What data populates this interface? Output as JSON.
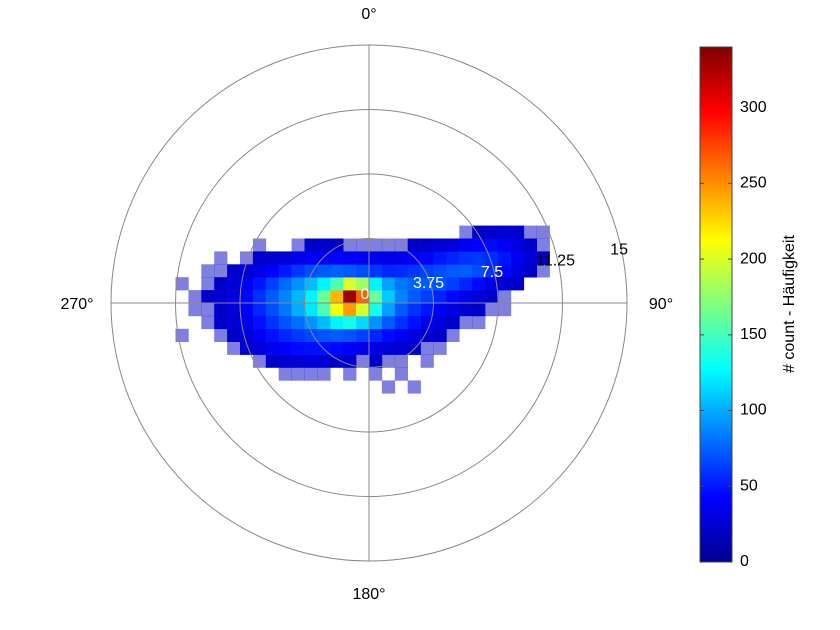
{
  "chart_data": {
    "type": "polar_heatmap",
    "colorbar_label": "# count - Häufigkeit",
    "rlim": [
      0,
      15
    ],
    "rticks": [
      0,
      3.75,
      7.5,
      11.25,
      15
    ],
    "thetaticks": [
      {
        "value": 0,
        "label": "0°"
      },
      {
        "value": 90,
        "label": "90°"
      },
      {
        "value": 180,
        "label": "180°"
      },
      {
        "value": 270,
        "label": "270°"
      }
    ],
    "clim": [
      0,
      340
    ],
    "cticks": [
      0,
      50,
      100,
      150,
      200,
      250,
      300
    ],
    "colormap": "jet",
    "xbins": [
      -11.25,
      -10.5,
      -9.75,
      -9,
      -8.25,
      -7.5,
      -6.75,
      -6,
      -5.25,
      -4.5,
      -3.75,
      -3,
      -2.25,
      -1.5,
      -0.75,
      0,
      0.75,
      1.5,
      2.25,
      3,
      3.75,
      4.5,
      5.25,
      6,
      6.75,
      7.5,
      8.25,
      9,
      9.75,
      10.5
    ],
    "ybins": [
      -5.25,
      -4.5,
      -3.75,
      -3,
      -2.25,
      -1.5,
      -0.75,
      0,
      0.75,
      1.5,
      2.25,
      3,
      3.75,
      4.5
    ],
    "counts": [
      [
        null,
        null,
        null,
        null,
        null,
        null,
        null,
        null,
        null,
        null,
        null,
        null,
        null,
        null,
        null,
        null,
        1,
        null,
        1,
        null,
        null,
        null,
        null,
        null,
        null,
        null,
        null,
        null,
        null
      ],
      [
        null,
        null,
        null,
        null,
        null,
        null,
        null,
        null,
        1,
        1,
        2,
        1,
        null,
        1,
        null,
        1,
        null,
        1,
        null,
        null,
        null,
        null,
        null,
        null,
        null,
        null,
        null,
        null,
        null
      ],
      [
        null,
        null,
        null,
        null,
        null,
        null,
        2,
        4,
        6,
        8,
        9,
        7,
        5,
        3,
        2,
        3,
        2,
        1,
        null,
        1,
        null,
        null,
        null,
        null,
        null,
        null,
        null,
        null,
        null
      ],
      [
        null,
        null,
        null,
        null,
        2,
        5,
        10,
        16,
        22,
        26,
        28,
        28,
        25,
        20,
        16,
        12,
        9,
        6,
        4,
        2,
        1,
        null,
        null,
        null,
        null,
        null,
        null,
        null,
        null
      ],
      [
        1,
        null,
        null,
        2,
        4,
        10,
        18,
        28,
        36,
        42,
        48,
        52,
        55,
        52,
        45,
        36,
        26,
        18,
        12,
        7,
        3,
        1,
        null,
        null,
        null,
        null,
        null,
        null,
        null
      ],
      [
        null,
        null,
        1,
        3,
        7,
        16,
        28,
        40,
        52,
        62,
        75,
        90,
        110,
        120,
        100,
        75,
        55,
        40,
        28,
        18,
        10,
        5,
        2,
        1,
        null,
        null,
        null,
        null,
        null
      ],
      [
        null,
        1,
        2,
        5,
        10,
        22,
        36,
        50,
        65,
        85,
        105,
        140,
        200,
        240,
        190,
        120,
        80,
        55,
        40,
        30,
        20,
        12,
        6,
        3,
        1,
        1,
        null,
        null,
        null
      ],
      [
        null,
        1,
        3,
        6,
        12,
        25,
        40,
        55,
        70,
        88,
        110,
        150,
        230,
        330,
        260,
        150,
        95,
        70,
        55,
        45,
        35,
        25,
        15,
        8,
        4,
        2,
        null,
        null,
        null
      ],
      [
        1,
        null,
        2,
        4,
        8,
        18,
        30,
        45,
        60,
        75,
        90,
        110,
        140,
        190,
        170,
        110,
        80,
        65,
        58,
        55,
        52,
        45,
        35,
        25,
        15,
        7,
        3,
        null,
        null
      ],
      [
        null,
        null,
        1,
        2,
        4,
        8,
        14,
        22,
        32,
        42,
        50,
        55,
        58,
        55,
        50,
        42,
        36,
        38,
        42,
        46,
        50,
        55,
        56,
        50,
        40,
        25,
        12,
        4,
        1
      ],
      [
        null,
        null,
        null,
        1,
        null,
        2,
        4,
        6,
        10,
        14,
        18,
        20,
        22,
        20,
        18,
        15,
        14,
        16,
        20,
        24,
        30,
        35,
        40,
        42,
        38,
        30,
        18,
        8,
        3
      ],
      [
        null,
        null,
        null,
        null,
        null,
        null,
        1,
        null,
        null,
        2,
        3,
        4,
        3,
        2,
        2,
        1,
        2,
        2,
        3,
        5,
        8,
        12,
        18,
        22,
        25,
        20,
        12,
        5,
        2
      ],
      [
        null,
        null,
        null,
        null,
        null,
        null,
        null,
        null,
        null,
        null,
        null,
        null,
        null,
        null,
        null,
        null,
        null,
        null,
        null,
        null,
        null,
        null,
        1,
        3,
        5,
        8,
        6,
        2,
        1
      ]
    ]
  }
}
